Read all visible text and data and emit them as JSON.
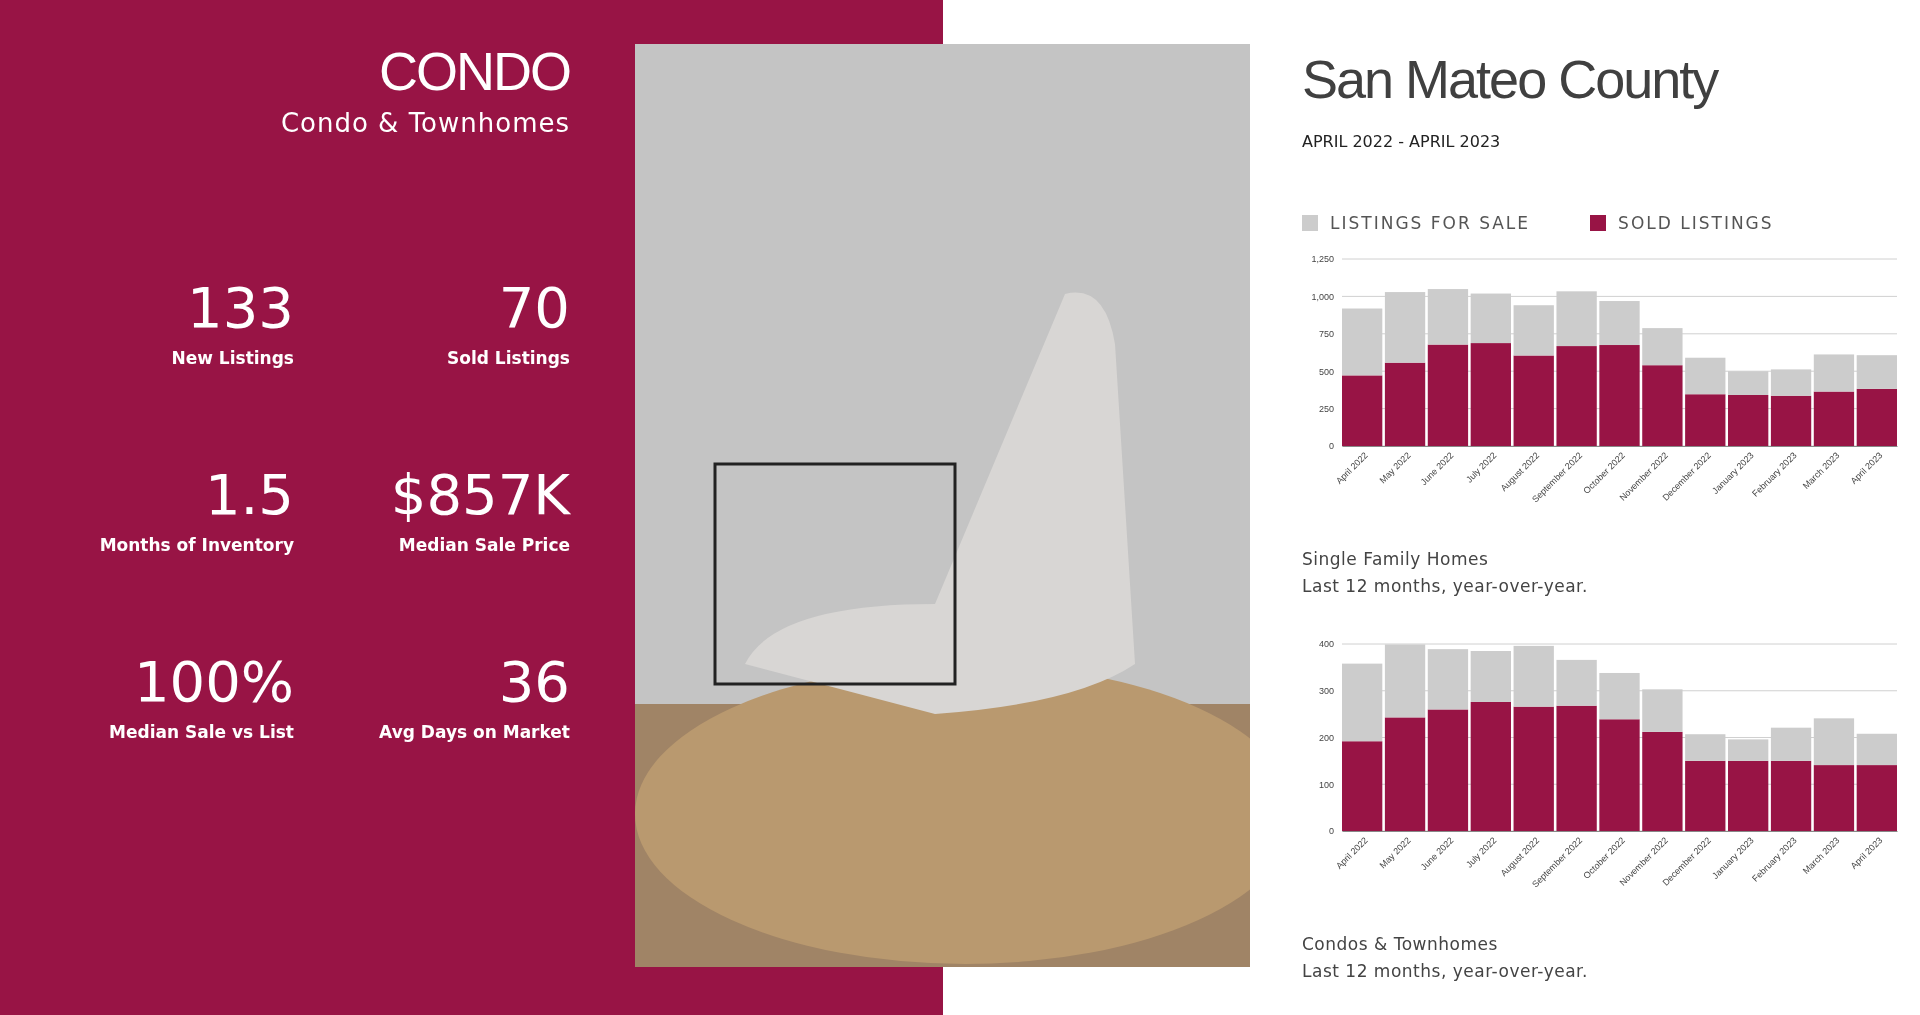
{
  "chart_data": [
    {
      "type": "other",
      "title": "CONDO",
      "subtitle": "Condo & Townhomes",
      "annotations": [
        "133",
        "New Listings",
        "70",
        "Sold Listings",
        "1.5",
        "Months of Inventory",
        "$857K",
        "Median Sale Price",
        "100%",
        "Median Sale vs List",
        "36",
        "Avg Days on Market"
      ]
    },
    {
      "type": "bar",
      "title": "San Mateo County",
      "subtitle": "APRIL 2022 - APRIL 2023",
      "stacked": true,
      "categories": [
        "April 2022",
        "May 2022",
        "June 2022",
        "July 2022",
        "August 2022",
        "September 2022",
        "October 2022",
        "November 2022",
        "December 2022",
        "January 2023",
        "February 2023",
        "March 2023",
        "April 2023"
      ],
      "series": [
        {
          "name": "SOLD LISTINGS",
          "color": "#981445",
          "values": [
            472,
            557,
            678,
            688,
            605,
            668,
            675,
            540,
            346,
            341,
            336,
            364,
            382
          ]
        },
        {
          "name": "LISTINGS FOR SALE",
          "color": "#cccccc",
          "values": [
            447,
            472,
            371,
            331,
            336,
            366,
            294,
            248,
            244,
            159,
            176,
            248,
            225
          ]
        }
      ],
      "ylim": [
        0,
        1250
      ],
      "yticks": [
        0,
        250,
        500,
        750,
        {
          "value": 1000,
          "label": "1,000"
        },
        {
          "value": 1250,
          "label": "1,250"
        }
      ],
      "grid": "y",
      "legend": "top left",
      "annotations": [
        "Single Family Homes",
        "Last 12 months, year-over-year."
      ]
    },
    {
      "type": "bar",
      "stacked": true,
      "categories": [
        "April 2022",
        "May 2022",
        "June 2022",
        "July 2022",
        "August 2022",
        "September 2022",
        "October 2022",
        "November 2022",
        "December 2022",
        "January 2023",
        "February 2023",
        "March 2023",
        "April 2023"
      ],
      "series": [
        {
          "color": "#981445",
          "values": [
            192,
            243,
            260,
            276,
            266,
            268,
            239,
            212,
            150,
            150,
            150,
            141,
            141
          ]
        },
        {
          "color": "#cccccc",
          "values": [
            166,
            156,
            129,
            109,
            130,
            98,
            99,
            91,
            57,
            46,
            71,
            100,
            67
          ]
        }
      ],
      "ylim": [
        0,
        400
      ],
      "yticks": [
        0,
        100,
        200,
        300,
        400
      ],
      "grid": "y",
      "annotations": [
        "Condos & Townhomes",
        "Last 12 months, year-over-year."
      ]
    }
  ]
}
